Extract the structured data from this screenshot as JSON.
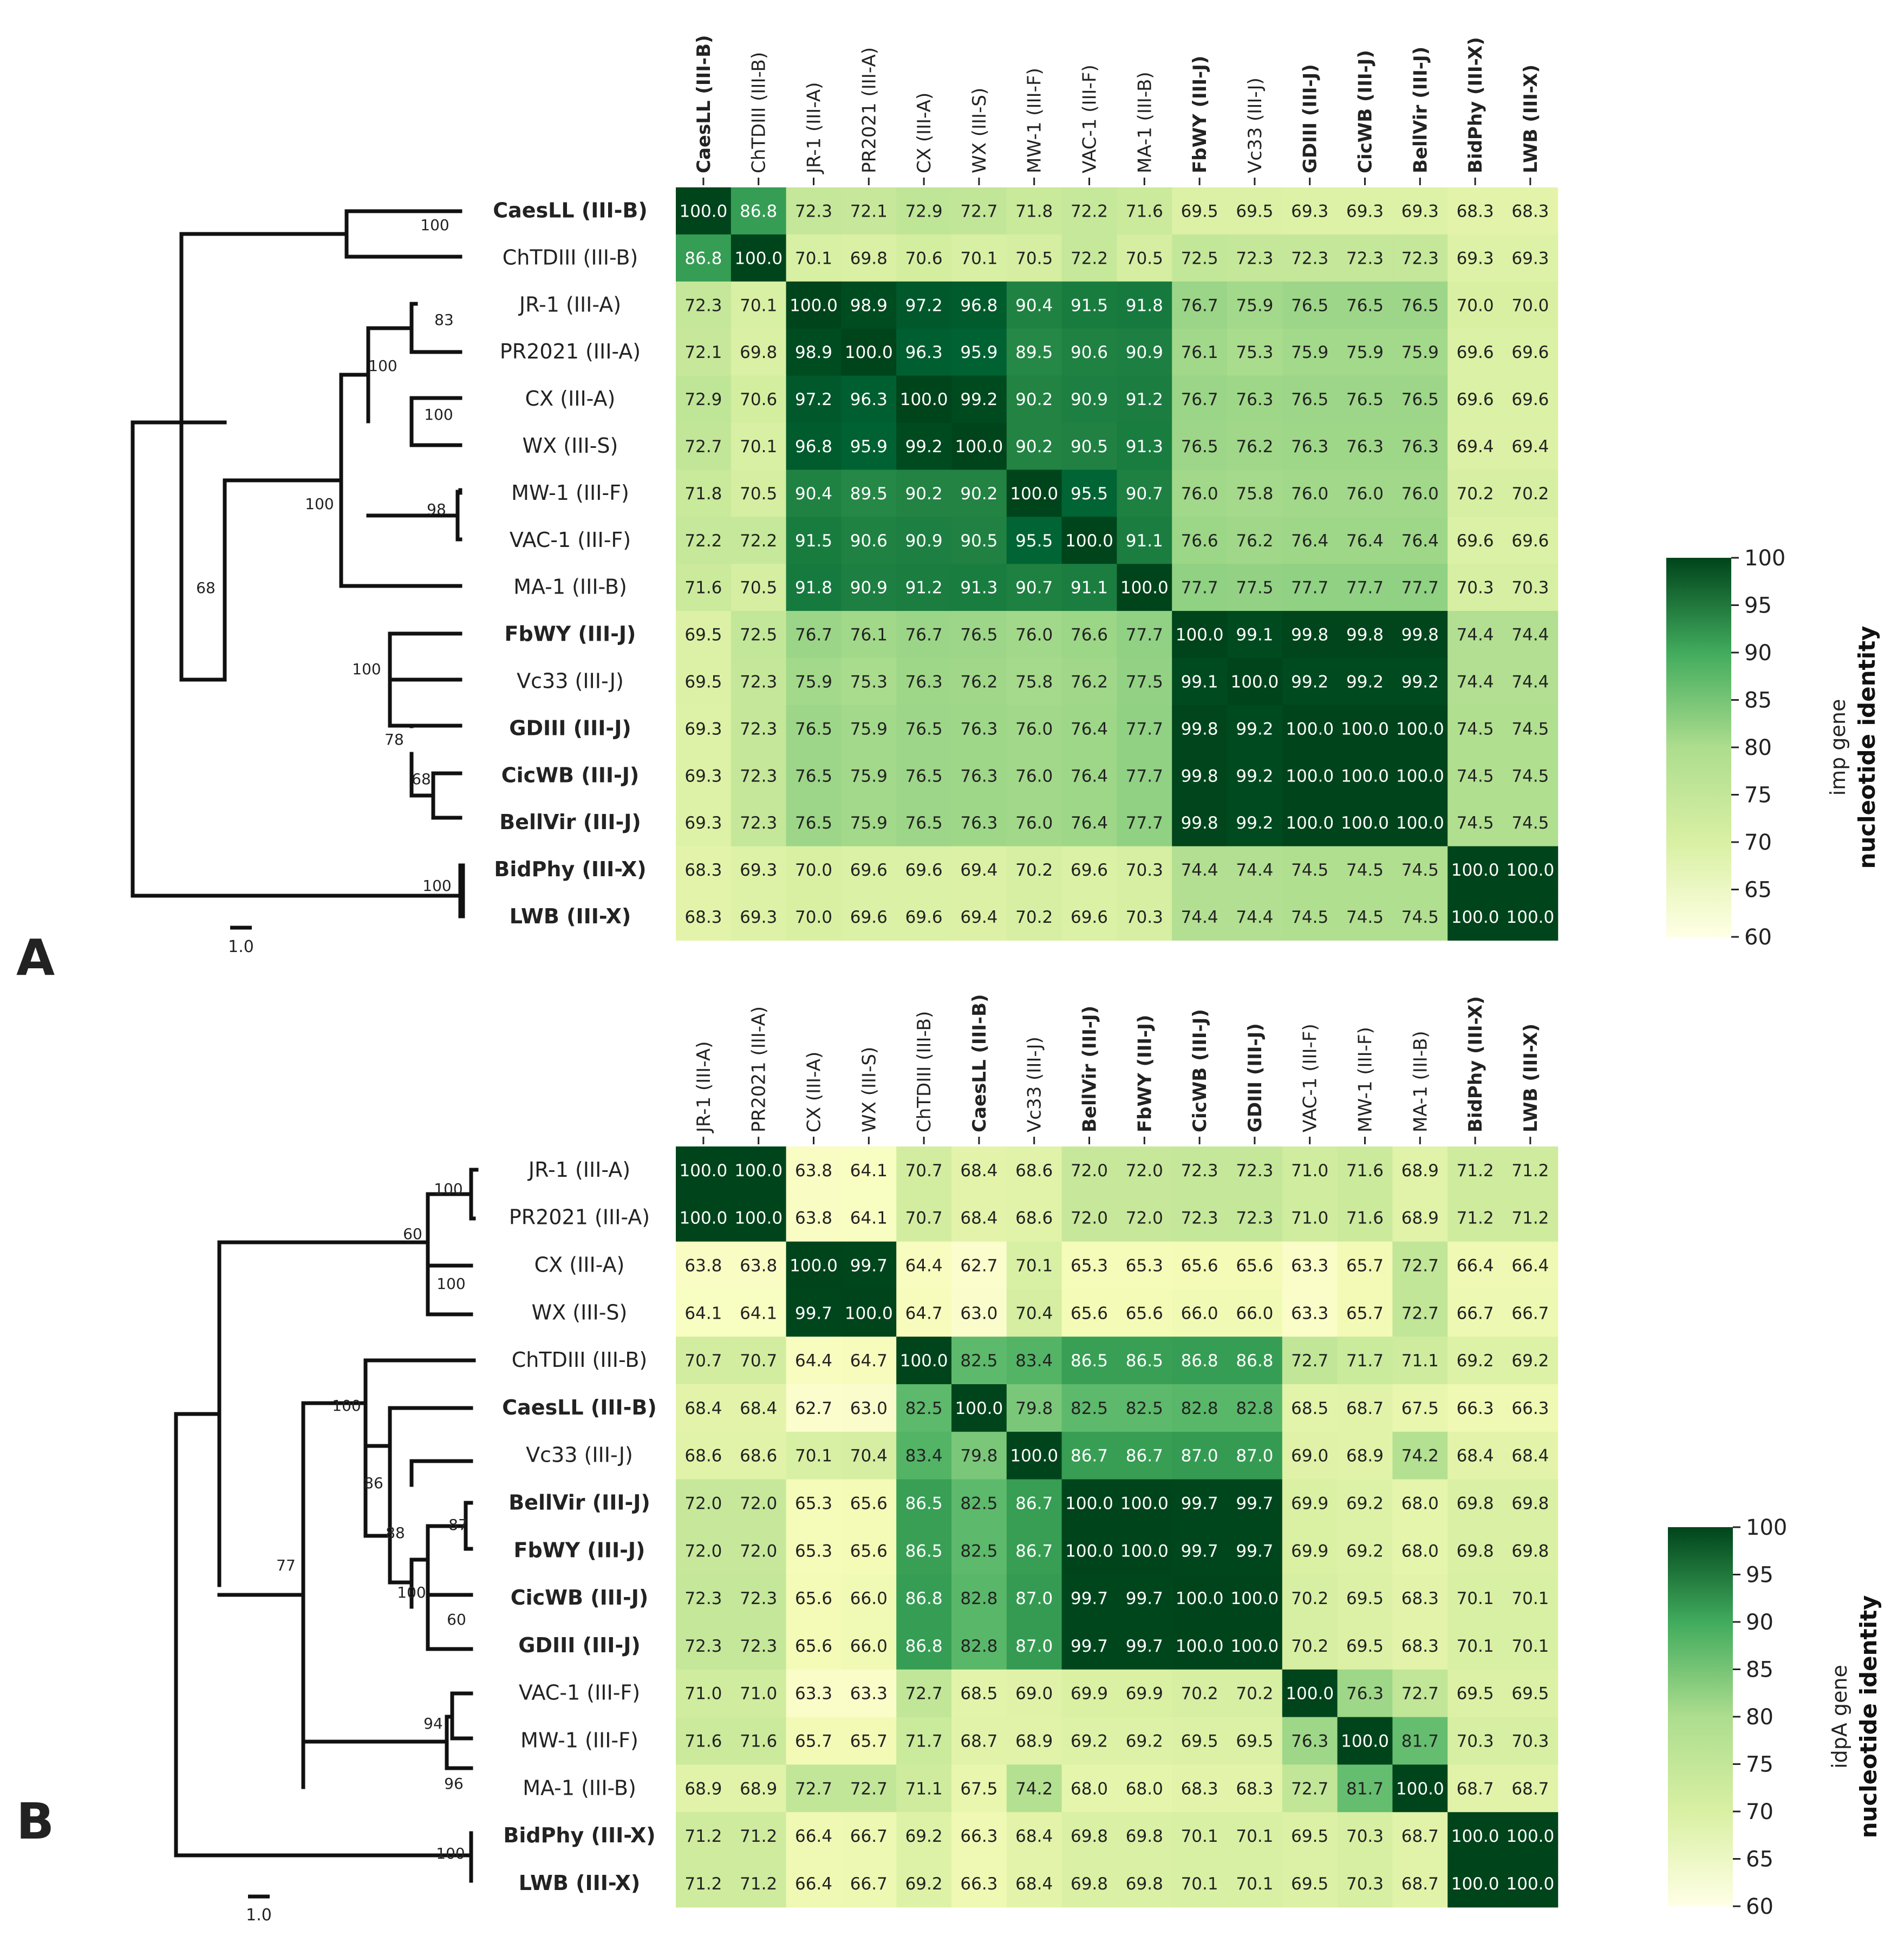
{
  "chart_data": [
    {
      "type": "heatmap",
      "panel_label": "A",
      "labels": [
        "CaesLL (III-B)",
        "ChTDIII (III-B)",
        "JR-1 (III-A)",
        "PR2021 (III-A)",
        "CX (III-A)",
        "WX (III-S)",
        "MW-1 (III-F)",
        "VAC-1 (III-F)",
        "MA-1 (III-B)",
        "FbWY (III-J)",
        "Vc33 (III-J)",
        "GDIII (III-J)",
        "CicWB (III-J)",
        "BellVir (III-J)",
        "BidPhy (III-X)",
        "LWB (III-X)"
      ],
      "bold": [
        true,
        false,
        false,
        false,
        false,
        false,
        false,
        false,
        false,
        true,
        false,
        true,
        true,
        true,
        true,
        true
      ],
      "values": [
        [
          100.0,
          86.8,
          72.3,
          72.1,
          72.9,
          72.7,
          71.8,
          72.2,
          71.6,
          69.5,
          69.5,
          69.3,
          69.3,
          69.3,
          68.3,
          68.3
        ],
        [
          86.8,
          100.0,
          70.1,
          69.8,
          70.6,
          70.1,
          70.5,
          72.2,
          70.5,
          72.5,
          72.3,
          72.3,
          72.3,
          72.3,
          69.3,
          69.3
        ],
        [
          72.3,
          70.1,
          100.0,
          98.9,
          97.2,
          96.8,
          90.4,
          91.5,
          91.8,
          76.7,
          75.9,
          76.5,
          76.5,
          76.5,
          70.0,
          70.0
        ],
        [
          72.1,
          69.8,
          98.9,
          100.0,
          96.3,
          95.9,
          89.5,
          90.6,
          90.9,
          76.1,
          75.3,
          75.9,
          75.9,
          75.9,
          69.6,
          69.6
        ],
        [
          72.9,
          70.6,
          97.2,
          96.3,
          100.0,
          99.2,
          90.2,
          90.9,
          91.2,
          76.7,
          76.3,
          76.5,
          76.5,
          76.5,
          69.6,
          69.6
        ],
        [
          72.7,
          70.1,
          96.8,
          95.9,
          99.2,
          100.0,
          90.2,
          90.5,
          91.3,
          76.5,
          76.2,
          76.3,
          76.3,
          76.3,
          69.4,
          69.4
        ],
        [
          71.8,
          70.5,
          90.4,
          89.5,
          90.2,
          90.2,
          100.0,
          95.5,
          90.7,
          76.0,
          75.8,
          76.0,
          76.0,
          76.0,
          70.2,
          70.2
        ],
        [
          72.2,
          72.2,
          91.5,
          90.6,
          90.9,
          90.5,
          95.5,
          100.0,
          91.1,
          76.6,
          76.2,
          76.4,
          76.4,
          76.4,
          69.6,
          69.6
        ],
        [
          71.6,
          70.5,
          91.8,
          90.9,
          91.2,
          91.3,
          90.7,
          91.1,
          100.0,
          77.7,
          77.5,
          77.7,
          77.7,
          77.7,
          70.3,
          70.3
        ],
        [
          69.5,
          72.5,
          76.7,
          76.1,
          76.7,
          76.5,
          76.0,
          76.6,
          77.7,
          100.0,
          99.1,
          99.8,
          99.8,
          99.8,
          74.4,
          74.4
        ],
        [
          69.5,
          72.3,
          75.9,
          75.3,
          76.3,
          76.2,
          75.8,
          76.2,
          77.5,
          99.1,
          100.0,
          99.2,
          99.2,
          99.2,
          74.4,
          74.4
        ],
        [
          69.3,
          72.3,
          76.5,
          75.9,
          76.5,
          76.3,
          76.0,
          76.4,
          77.7,
          99.8,
          99.2,
          100.0,
          100.0,
          100.0,
          74.5,
          74.5
        ],
        [
          69.3,
          72.3,
          76.5,
          75.9,
          76.5,
          76.3,
          76.0,
          76.4,
          77.7,
          99.8,
          99.2,
          100.0,
          100.0,
          100.0,
          74.5,
          74.5
        ],
        [
          69.3,
          72.3,
          76.5,
          75.9,
          76.5,
          76.3,
          76.0,
          76.4,
          77.7,
          99.8,
          99.2,
          100.0,
          100.0,
          100.0,
          74.5,
          74.5
        ],
        [
          68.3,
          69.3,
          70.0,
          69.6,
          69.6,
          69.4,
          70.2,
          69.6,
          70.3,
          74.4,
          74.4,
          74.5,
          74.5,
          74.5,
          100.0,
          100.0
        ],
        [
          68.3,
          69.3,
          70.0,
          69.6,
          69.6,
          69.4,
          70.2,
          69.6,
          70.3,
          74.4,
          74.4,
          74.5,
          74.5,
          74.5,
          100.0,
          100.0
        ]
      ],
      "tree_bootstrap": [
        "100",
        "83",
        "100",
        "100",
        "98",
        "100",
        "68",
        "100",
        "78",
        "68",
        "100"
      ],
      "scale_label": "1.0",
      "colorbar": {
        "min": 60,
        "max": 100,
        "ticks": [
          "100",
          "95",
          "90",
          "85",
          "80",
          "75",
          "70",
          "65",
          "60"
        ],
        "label_top": "imp gene",
        "label_bottom": "nucleotide identity"
      }
    },
    {
      "type": "heatmap",
      "panel_label": "B",
      "labels": [
        "JR-1 (III-A)",
        "PR2021 (III-A)",
        "CX (III-A)",
        "WX (III-S)",
        "ChTDIII (III-B)",
        "CaesLL (III-B)",
        "Vc33 (III-J)",
        "BellVir (III-J)",
        "FbWY (III-J)",
        "CicWB (III-J)",
        "GDIII (III-J)",
        "VAC-1 (III-F)",
        "MW-1 (III-F)",
        "MA-1 (III-B)",
        "BidPhy (III-X)",
        "LWB (III-X)"
      ],
      "bold": [
        false,
        false,
        false,
        false,
        false,
        true,
        false,
        true,
        true,
        true,
        true,
        false,
        false,
        false,
        true,
        true
      ],
      "values": [
        [
          100.0,
          100.0,
          63.8,
          64.1,
          70.7,
          68.4,
          68.6,
          72.0,
          72.0,
          72.3,
          72.3,
          71.0,
          71.6,
          68.9,
          71.2,
          71.2
        ],
        [
          100.0,
          100.0,
          63.8,
          64.1,
          70.7,
          68.4,
          68.6,
          72.0,
          72.0,
          72.3,
          72.3,
          71.0,
          71.6,
          68.9,
          71.2,
          71.2
        ],
        [
          63.8,
          63.8,
          100.0,
          99.7,
          64.4,
          62.7,
          70.1,
          65.3,
          65.3,
          65.6,
          65.6,
          63.3,
          65.7,
          72.7,
          66.4,
          66.4
        ],
        [
          64.1,
          64.1,
          99.7,
          100.0,
          64.7,
          63.0,
          70.4,
          65.6,
          65.6,
          66.0,
          66.0,
          63.3,
          65.7,
          72.7,
          66.7,
          66.7
        ],
        [
          70.7,
          70.7,
          64.4,
          64.7,
          100.0,
          82.5,
          83.4,
          86.5,
          86.5,
          86.8,
          86.8,
          72.7,
          71.7,
          71.1,
          69.2,
          69.2
        ],
        [
          68.4,
          68.4,
          62.7,
          63.0,
          82.5,
          100.0,
          79.8,
          82.5,
          82.5,
          82.8,
          82.8,
          68.5,
          68.7,
          67.5,
          66.3,
          66.3
        ],
        [
          68.6,
          68.6,
          70.1,
          70.4,
          83.4,
          79.8,
          100.0,
          86.7,
          86.7,
          87.0,
          87.0,
          69.0,
          68.9,
          74.2,
          68.4,
          68.4
        ],
        [
          72.0,
          72.0,
          65.3,
          65.6,
          86.5,
          82.5,
          86.7,
          100.0,
          100.0,
          99.7,
          99.7,
          69.9,
          69.2,
          68.0,
          69.8,
          69.8
        ],
        [
          72.0,
          72.0,
          65.3,
          65.6,
          86.5,
          82.5,
          86.7,
          100.0,
          100.0,
          99.7,
          99.7,
          69.9,
          69.2,
          68.0,
          69.8,
          69.8
        ],
        [
          72.3,
          72.3,
          65.6,
          66.0,
          86.8,
          82.8,
          87.0,
          99.7,
          99.7,
          100.0,
          100.0,
          70.2,
          69.5,
          68.3,
          70.1,
          70.1
        ],
        [
          72.3,
          72.3,
          65.6,
          66.0,
          86.8,
          82.8,
          87.0,
          99.7,
          99.7,
          100.0,
          100.0,
          70.2,
          69.5,
          68.3,
          70.1,
          70.1
        ],
        [
          71.0,
          71.0,
          63.3,
          63.3,
          72.7,
          68.5,
          69.0,
          69.9,
          69.9,
          70.2,
          70.2,
          100.0,
          76.3,
          72.7,
          69.5,
          69.5
        ],
        [
          71.6,
          71.6,
          65.7,
          65.7,
          71.7,
          68.7,
          68.9,
          69.2,
          69.2,
          69.5,
          69.5,
          76.3,
          100.0,
          81.7,
          70.3,
          70.3
        ],
        [
          68.9,
          68.9,
          72.7,
          72.7,
          71.1,
          67.5,
          74.2,
          68.0,
          68.0,
          68.3,
          68.3,
          72.7,
          81.7,
          100.0,
          68.7,
          68.7
        ],
        [
          71.2,
          71.2,
          66.4,
          66.7,
          69.2,
          66.3,
          68.4,
          69.8,
          69.8,
          70.1,
          70.1,
          69.5,
          70.3,
          68.7,
          100.0,
          100.0
        ],
        [
          71.2,
          71.2,
          66.4,
          66.7,
          69.2,
          66.3,
          68.4,
          69.8,
          69.8,
          70.1,
          70.1,
          69.5,
          70.3,
          68.7,
          100.0,
          100.0
        ]
      ],
      "tree_bootstrap": [
        "100",
        "60",
        "100",
        "100",
        "86",
        "88",
        "87",
        "100",
        "60",
        "77",
        "94",
        "96",
        "100"
      ],
      "scale_label": "1.0",
      "colorbar": {
        "min": 60,
        "max": 100,
        "ticks": [
          "100",
          "95",
          "90",
          "85",
          "80",
          "75",
          "70",
          "65",
          "60"
        ],
        "label_top": "idpA gene",
        "label_bottom": "nucleotide identity"
      }
    }
  ]
}
